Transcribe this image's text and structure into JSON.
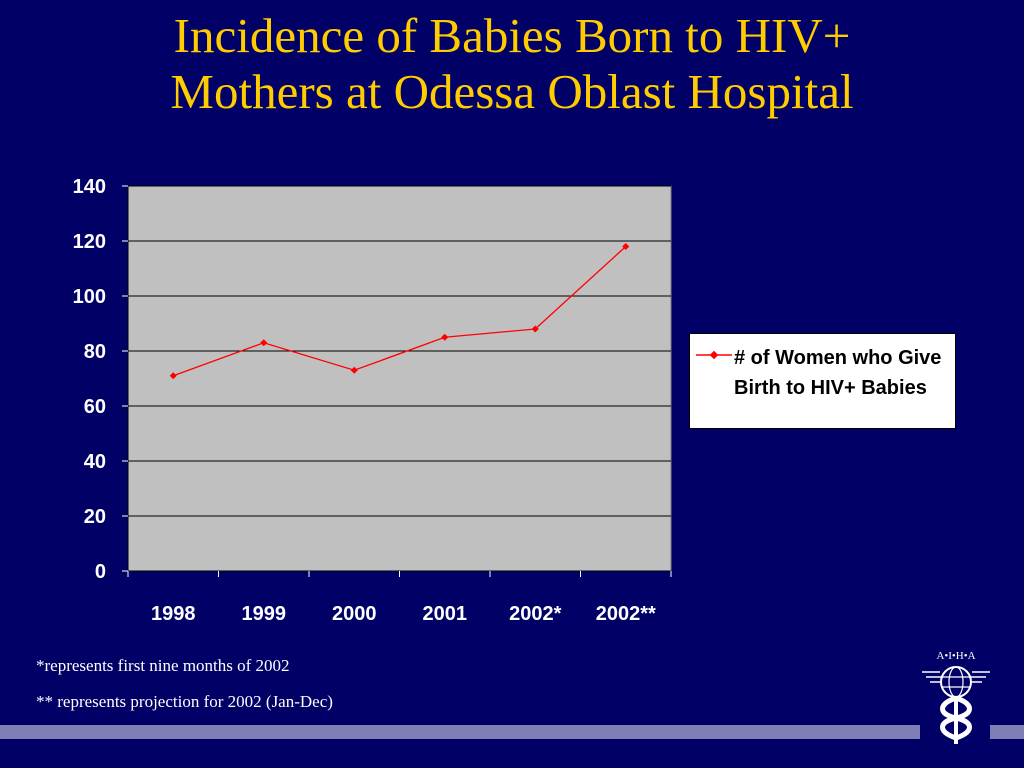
{
  "slide": {
    "title_line1": "Incidence of Babies Born to HIV+",
    "title_line2": "Mothers at Odessa Oblast Hospital",
    "footnote1": "*represents first nine months of 2002",
    "footnote2": "** represents projection for 2002 (Jan-Dec)",
    "logo_text": "A•I•H•A"
  },
  "colors": {
    "background": "#000066",
    "title": "#FFCC00",
    "plot_area": "#C0C0C0",
    "series_line": "#FF0000",
    "bottom_bar": "#7F7FB6"
  },
  "chart_data": {
    "type": "line",
    "title": "",
    "xlabel": "",
    "ylabel": "",
    "categories": [
      "1998",
      "1999",
      "2000",
      "2001",
      "2002*",
      "2002**"
    ],
    "ylim": [
      0,
      140
    ],
    "yticks": [
      0,
      20,
      40,
      60,
      80,
      100,
      120,
      140
    ],
    "grid": true,
    "legend_position": "right",
    "series": [
      {
        "name": "# of Women who Give Birth to HIV+ Babies",
        "values": [
          71,
          83,
          73,
          85,
          88,
          118
        ]
      }
    ]
  }
}
